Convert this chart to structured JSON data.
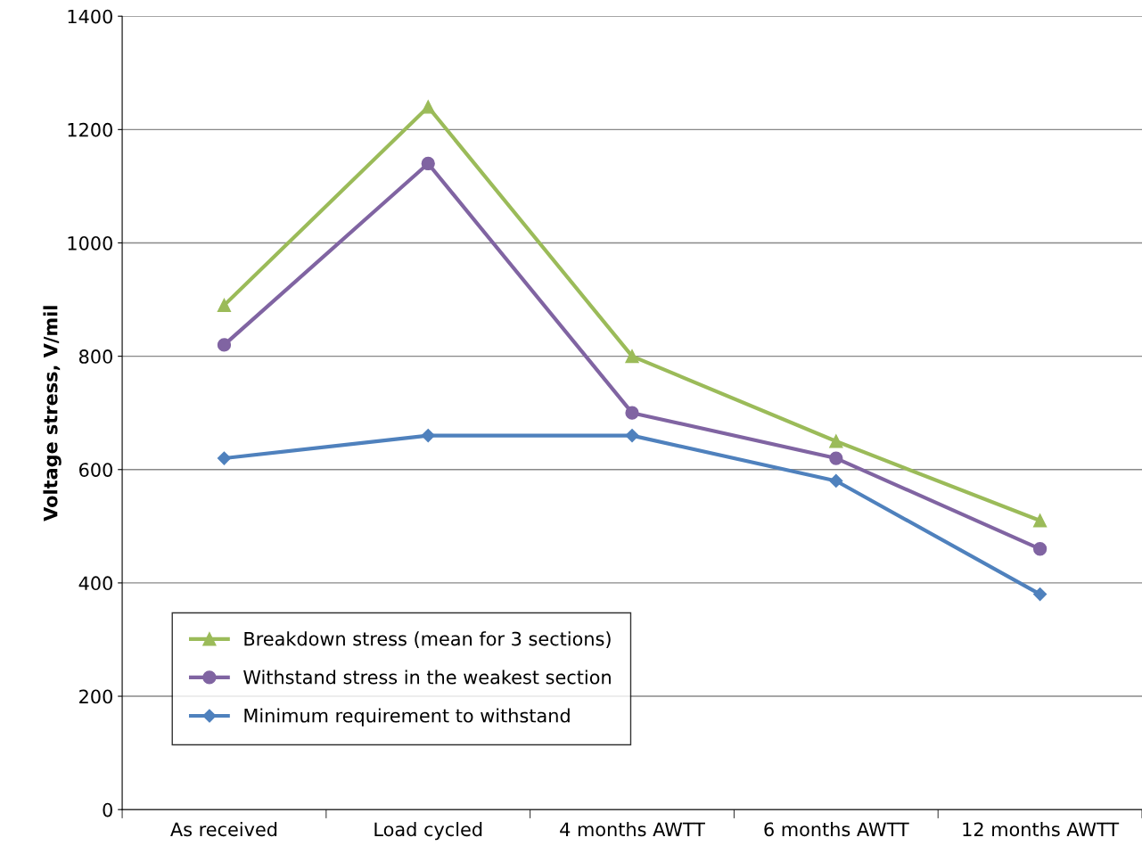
{
  "chart_data": {
    "type": "line",
    "ylabel": "Voltage stress, V/mil",
    "categories": [
      "As received",
      "Load cycled",
      "4 months AWTT",
      "6 months AWTT",
      "12 months AWTT"
    ],
    "series": [
      {
        "name": "Breakdown stress (mean for 3 sections)",
        "color": "#9bbb59",
        "marker": "triangle",
        "values": [
          890,
          1240,
          800,
          650,
          510
        ]
      },
      {
        "name": "Withstand stress in the weakest section",
        "color": "#8064a2",
        "marker": "circle",
        "values": [
          820,
          1140,
          700,
          620,
          460
        ]
      },
      {
        "name": "Minimum requirement to withstand",
        "color": "#4f81bd",
        "marker": "diamond",
        "values": [
          620,
          660,
          660,
          580,
          380
        ]
      }
    ],
    "ylim": [
      0,
      1400
    ],
    "yticks": [
      0,
      200,
      400,
      600,
      800,
      1000,
      1200,
      1400
    ],
    "grid": "y",
    "legend": "bottom left",
    "line_style": "solid"
  }
}
